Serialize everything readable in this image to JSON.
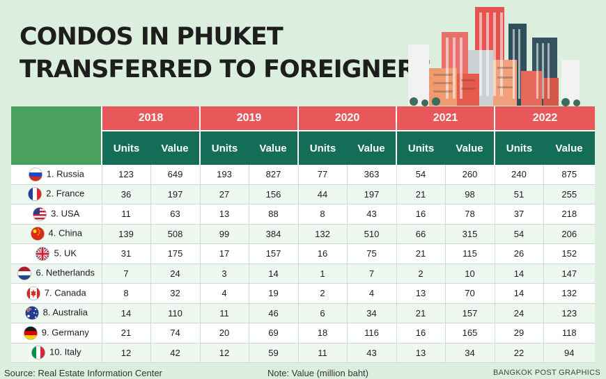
{
  "title_lines": [
    "CONDOS IN PHUKET",
    "TRANSFERRED TO FOREIGNERS"
  ],
  "chart_data": {
    "type": "table",
    "years": [
      "2018",
      "2019",
      "2020",
      "2021",
      "2022"
    ],
    "columns": [
      "Units",
      "Value"
    ],
    "rows": [
      {
        "label": "1. Russia",
        "flag": "russia-flag-icon",
        "values": [
          123,
          649,
          193,
          827,
          77,
          363,
          54,
          260,
          240,
          875
        ]
      },
      {
        "label": "2. France",
        "flag": "france-flag-icon",
        "values": [
          36,
          197,
          27,
          156,
          44,
          197,
          21,
          98,
          51,
          255
        ]
      },
      {
        "label": "3. USA",
        "flag": "usa-flag-icon",
        "values": [
          11,
          63,
          13,
          88,
          8,
          43,
          16,
          78,
          37,
          218
        ]
      },
      {
        "label": "4. China",
        "flag": "china-flag-icon",
        "values": [
          139,
          508,
          99,
          384,
          132,
          510,
          66,
          315,
          54,
          206
        ]
      },
      {
        "label": "5. UK",
        "flag": "uk-flag-icon",
        "values": [
          31,
          175,
          17,
          157,
          16,
          75,
          21,
          115,
          26,
          152
        ]
      },
      {
        "label": "6. Netherlands",
        "flag": "netherlands-flag-icon",
        "values": [
          7,
          24,
          3,
          14,
          1,
          7,
          2,
          10,
          14,
          147
        ]
      },
      {
        "label": "7. Canada",
        "flag": "canada-flag-icon",
        "values": [
          8,
          32,
          4,
          19,
          2,
          4,
          13,
          70,
          14,
          132
        ]
      },
      {
        "label": "8. Australia",
        "flag": "australia-flag-icon",
        "values": [
          14,
          110,
          11,
          46,
          6,
          34,
          21,
          157,
          24,
          123
        ]
      },
      {
        "label": "9. Germany",
        "flag": "germany-flag-icon",
        "values": [
          21,
          74,
          20,
          69,
          18,
          116,
          16,
          165,
          29,
          118
        ]
      },
      {
        "label": "10. Italy",
        "flag": "italy-flag-icon",
        "values": [
          12,
          42,
          12,
          59,
          11,
          43,
          13,
          34,
          22,
          94
        ]
      }
    ]
  },
  "footer": {
    "source": "Source: Real Estate Information Center",
    "note": "Note: Value (million baht)",
    "brand": "BANGKOK POST GRAPHICS"
  },
  "colors": {
    "background": "#dcefdf",
    "year_header": "#e8575a",
    "subheader": "#146e57",
    "corner": "#4aa05f"
  },
  "illustration": "city-skyline-illustration"
}
